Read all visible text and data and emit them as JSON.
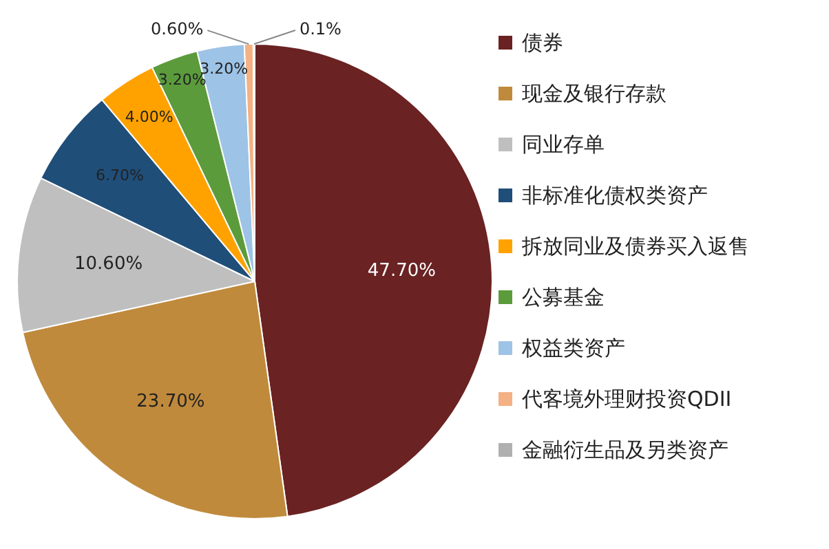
{
  "chart_data": {
    "type": "pie",
    "categories": [
      "债券",
      "现金及银行存款",
      "同业存单",
      "非标准化债权类资产",
      "拆放同业及债券买入返售",
      "公募基金",
      "权益类资产",
      "代客境外理财投资QDII",
      "金融衍生品及另类资产"
    ],
    "values": [
      47.7,
      23.7,
      10.6,
      6.7,
      4.0,
      3.2,
      3.2,
      0.6,
      0.1
    ],
    "value_labels": [
      "47.70%",
      "23.70%",
      "10.60%",
      "6.70%",
      "4.00%",
      "3.20%",
      "3.20%",
      "0.60%",
      "0.1%"
    ],
    "colors": [
      "#6a2222",
      "#c08a3c",
      "#bfbfbf",
      "#1f4e79",
      "#ffa200",
      "#5b9b3c",
      "#9dc3e6",
      "#f4b183",
      "#b0b0b0"
    ],
    "legend": "right"
  }
}
